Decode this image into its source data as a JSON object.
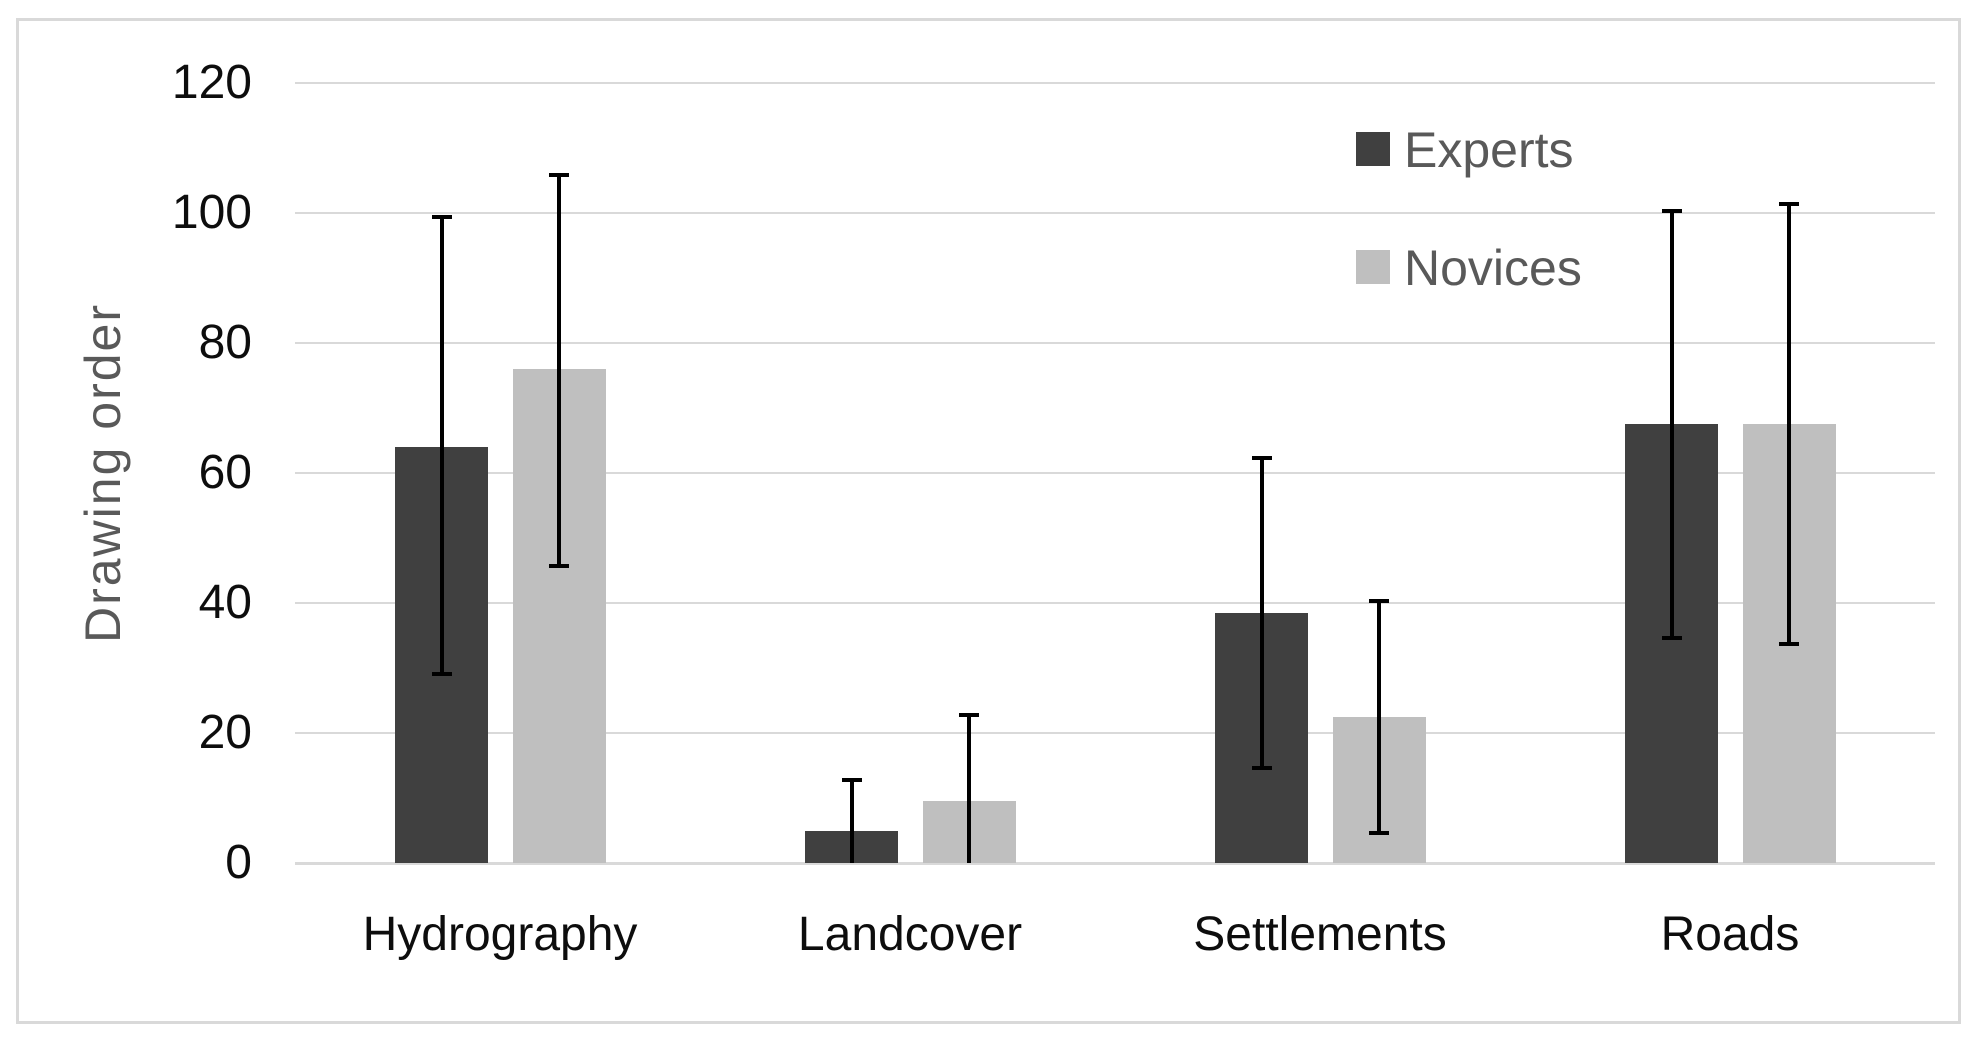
{
  "chart_data": {
    "type": "bar",
    "title": "",
    "ylabel": "Drawing order",
    "xlabel": "",
    "categories": [
      "Hydrography",
      "Landcover",
      "Settlements",
      "Roads"
    ],
    "series": [
      {
        "name": "Experts",
        "color": "#404040",
        "values": [
          64,
          5,
          38.5,
          67.5
        ],
        "error_high": [
          99.5,
          13,
          62.5,
          100.5
        ],
        "error_low": [
          29,
          0,
          14.5,
          34.5
        ]
      },
      {
        "name": "Novices",
        "color": "#BFBFBF",
        "values": [
          76,
          9.5,
          22.5,
          67.5
        ],
        "error_high": [
          106,
          23,
          40.5,
          101.5
        ],
        "error_low": [
          45.5,
          0,
          4.5,
          33.5
        ]
      }
    ],
    "ylim": [
      0,
      120
    ],
    "yticks": [
      0,
      20,
      40,
      60,
      80,
      100,
      120
    ],
    "grid": "horizontal",
    "legend_position": "top-right",
    "error_bars": "both-directions, black whiskers with end caps; lower whiskers on Landcover clipped at 0"
  },
  "style": {
    "background": "#FFFFFF",
    "frame_color": "#D9D9D9",
    "gridline_color": "#D9D9D9",
    "error_bar_color": "#000000",
    "tick_label_color": "#0D0D0D",
    "category_label_color": "#0D0D0D",
    "axis_title_color": "#595959",
    "legend_text_color": "#595959"
  }
}
